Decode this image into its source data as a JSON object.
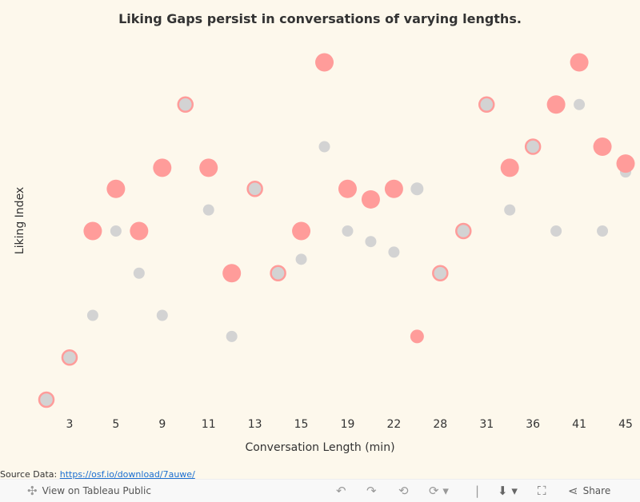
{
  "chart_data": {
    "type": "dumbbell",
    "title": "Liking Gaps persist in conversations of varying lengths.",
    "xlabel": "Conversation Length (min)",
    "ylabel": "Liking Index",
    "categories": [
      "",
      "3",
      "",
      "5",
      "",
      "9",
      "",
      "11",
      "",
      "13",
      "",
      "15",
      "",
      "19",
      "",
      "22",
      "",
      "28",
      "",
      "31",
      "",
      "36",
      "",
      "41",
      "",
      "45"
    ],
    "ylim": [
      1,
      9
    ],
    "grid": false,
    "series": [
      {
        "name": "pink",
        "color": "#ff9c9a",
        "values": [
          1,
          2,
          5,
          6,
          5,
          6.5,
          8,
          6.5,
          4,
          6,
          4,
          5,
          9,
          6,
          5.75,
          6,
          2.5,
          4,
          5,
          8,
          6.5,
          7,
          8,
          9,
          7,
          6.6
        ]
      },
      {
        "name": "gray",
        "color": "#d3d3d3",
        "values": [
          1,
          2,
          3,
          5,
          4,
          3,
          8,
          5.5,
          2.5,
          6,
          4,
          4.33,
          7,
          5,
          4.75,
          4.5,
          6,
          4,
          5,
          8,
          5.5,
          7,
          5,
          8,
          5,
          6.4
        ]
      }
    ]
  },
  "source": {
    "label": "Source Data:",
    "link": "https://osf.io/download/7auwe/"
  },
  "footer": {
    "view_label": "View on Tableau Public",
    "share_label": "Share"
  }
}
